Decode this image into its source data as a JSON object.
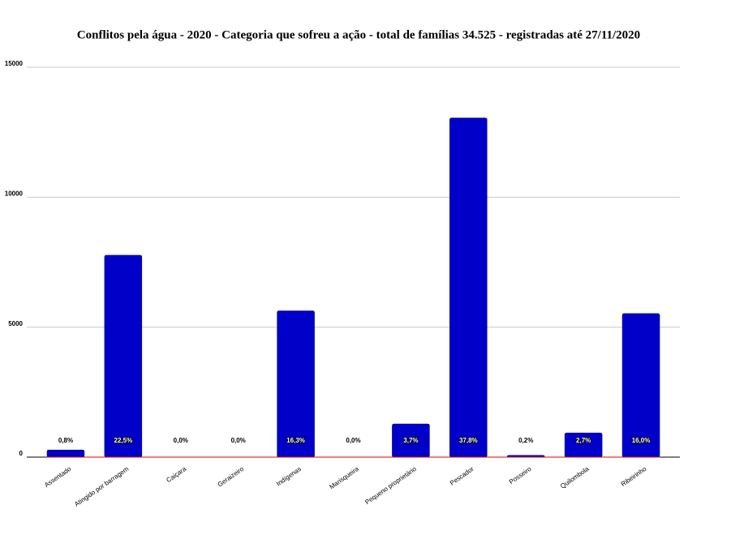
{
  "chart_data": {
    "type": "bar",
    "title": "Conflitos pela água - 2020 - Categoria que sofreu a ação - total de famílias 34.525 -  registradas até 27/11/2020",
    "categories": [
      "Assentado",
      "Atingido  por barragem",
      "Caiçara",
      "Geraizeiro",
      "Indígenas",
      "Marisqueira",
      "Pequeno proprietário",
      "Pescador",
      "Posseiro",
      "Quilombola",
      "Ribeirinho"
    ],
    "values": [
      276,
      7768,
      0,
      0,
      5628,
      0,
      1277,
      13050,
      69,
      932,
      5524
    ],
    "percentages": [
      0.8,
      22.5,
      0.0,
      0.0,
      16.3,
      0.0,
      3.7,
      37.8,
      0.2,
      2.7,
      16.0
    ],
    "percentage_labels": [
      "0,8%",
      "22,5%",
      "0,0%",
      "0,0%",
      "16,3%",
      "0,0%",
      "3,7%",
      "37,8%",
      "0,2%",
      "2,7%",
      "16,0%"
    ],
    "color": "#0000c8",
    "ylim": [
      0,
      15000
    ],
    "yticks": [
      0,
      5000,
      10000,
      15000
    ],
    "grid": true
  }
}
